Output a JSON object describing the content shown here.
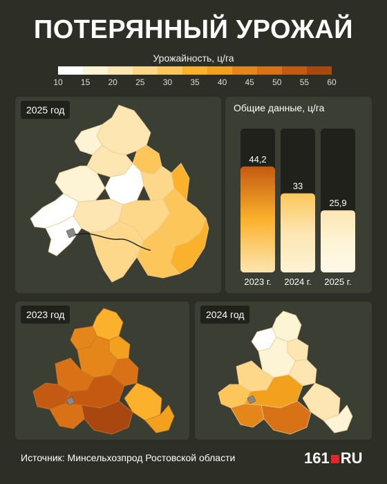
{
  "title": "ПОТЕРЯННЫЙ УРОЖАЙ",
  "legend": {
    "label": "Урожайность, ц/га",
    "ticks": [
      "10",
      "15",
      "20",
      "25",
      "30",
      "35",
      "40",
      "45",
      "50",
      "55",
      "60"
    ],
    "colors": [
      "#ffffff",
      "#fdf3d5",
      "#fde6b2",
      "#fdd88a",
      "#fcc65a",
      "#fbb12b",
      "#f2a11f",
      "#e4861a",
      "#d97116",
      "#c45a12",
      "#a94711"
    ]
  },
  "panels": {
    "map_2025": {
      "label": "2025 год"
    },
    "map_2023": {
      "label": "2023 год"
    },
    "map_2024": {
      "label": "2024 год"
    },
    "totals": {
      "title": "Общие данные, ц/га"
    }
  },
  "chart_data": {
    "type": "bar",
    "title": "Общие данные, ц/га",
    "categories": [
      "2023 г.",
      "2024 г.",
      "2025 г."
    ],
    "values": [
      44.2,
      33,
      25.9
    ],
    "value_labels": [
      "44,2",
      "33",
      "25,9"
    ],
    "ylim": [
      0,
      60
    ]
  },
  "footer": {
    "source": "Источник: Минсельхозпрод Ростовской области",
    "logo_num": "161",
    "logo_ru": "RU"
  }
}
